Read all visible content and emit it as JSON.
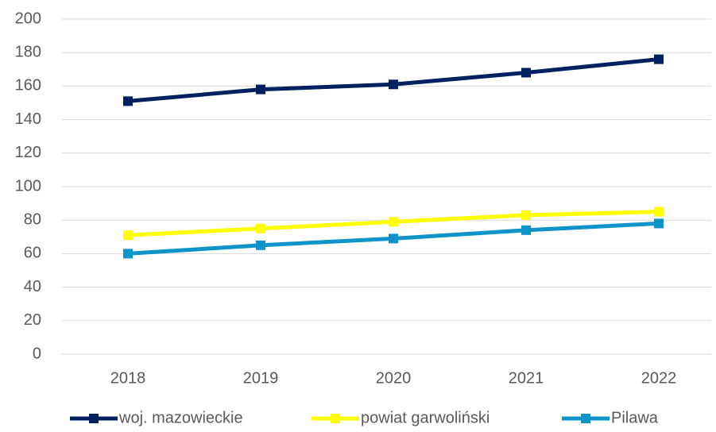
{
  "chart_data": {
    "type": "line",
    "categories": [
      "2018",
      "2019",
      "2020",
      "2021",
      "2022"
    ],
    "series": [
      {
        "name": "woj. mazowieckie",
        "color": "#002060",
        "values": [
          151,
          158,
          161,
          168,
          176
        ]
      },
      {
        "name": "powiat garwoliński",
        "color": "#ffff00",
        "values": [
          71,
          75,
          79,
          83,
          85
        ]
      },
      {
        "name": "Pilawa",
        "color": "#0e94c8",
        "values": [
          60,
          65,
          69,
          74,
          78
        ]
      }
    ],
    "ylim": [
      0,
      200
    ],
    "yticks": [
      0,
      20,
      40,
      60,
      80,
      100,
      120,
      140,
      160,
      180,
      200
    ],
    "grid": true,
    "legend": "bottom"
  }
}
